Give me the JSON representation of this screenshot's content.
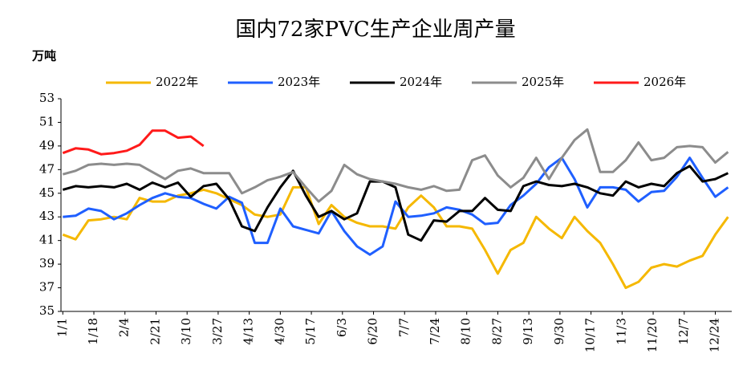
{
  "chart_data": {
    "type": "line",
    "title": "国内72家PVC生产企业周产量",
    "y_label": "万吨",
    "x": [
      0,
      7,
      14,
      21,
      28,
      35,
      42,
      49,
      56,
      63,
      70,
      77,
      84,
      91,
      98,
      105,
      112,
      119,
      126,
      133,
      140,
      147,
      154,
      161,
      168,
      175,
      182,
      189,
      196,
      203,
      210,
      217,
      224,
      231,
      238,
      245,
      252,
      259,
      266,
      273,
      280,
      287,
      294,
      301,
      308,
      315,
      322,
      329,
      336,
      343,
      350,
      357,
      364
    ],
    "xlim": [
      -1,
      366
    ],
    "xticks": [
      {
        "value": 0,
        "label": "1/1"
      },
      {
        "value": 17,
        "label": "1/18"
      },
      {
        "value": 34,
        "label": "2/4"
      },
      {
        "value": 51,
        "label": "2/21"
      },
      {
        "value": 68,
        "label": "3/10"
      },
      {
        "value": 85,
        "label": "3/27"
      },
      {
        "value": 102,
        "label": "4/13"
      },
      {
        "value": 119,
        "label": "4/30"
      },
      {
        "value": 136,
        "label": "5/17"
      },
      {
        "value": 153,
        "label": "6/3"
      },
      {
        "value": 170,
        "label": "6/20"
      },
      {
        "value": 187,
        "label": "7/7"
      },
      {
        "value": 204,
        "label": "7/24"
      },
      {
        "value": 221,
        "label": "8/10"
      },
      {
        "value": 238,
        "label": "8/27"
      },
      {
        "value": 255,
        "label": "9/13"
      },
      {
        "value": 272,
        "label": "9/30"
      },
      {
        "value": 289,
        "label": "10/17"
      },
      {
        "value": 306,
        "label": "11/3"
      },
      {
        "value": 323,
        "label": "11/20"
      },
      {
        "value": 340,
        "label": "12/7"
      },
      {
        "value": 357,
        "label": "12/24"
      }
    ],
    "ylim": [
      35,
      53
    ],
    "yticks": [
      35,
      37,
      39,
      41,
      43,
      45,
      47,
      49,
      51,
      53
    ],
    "grid": false,
    "legend": "top",
    "series": [
      {
        "name": "2022年",
        "color": "#f5b800",
        "values": [
          41.5,
          41.1,
          42.7,
          42.8,
          43.0,
          42.8,
          44.6,
          44.3,
          44.3,
          44.8,
          45.0,
          45.3,
          45.0,
          44.5,
          44.0,
          43.2,
          43.0,
          43.2,
          45.5,
          45.5,
          42.4,
          44.0,
          43.0,
          42.5,
          42.2,
          42.2,
          42.0,
          43.8,
          44.8,
          43.8,
          42.2,
          42.2,
          42.0,
          40.2,
          38.2,
          40.2,
          40.8,
          43.0,
          42.0,
          41.2,
          43.0,
          41.8,
          40.8,
          39.0,
          37.0,
          37.5,
          38.7,
          39.0,
          38.8,
          39.3,
          39.7,
          41.5,
          43.0
        ]
      },
      {
        "name": "2023年",
        "color": "#1f5fff",
        "values": [
          43.0,
          43.1,
          43.7,
          43.5,
          42.8,
          43.3,
          44.0,
          44.6,
          45.0,
          44.7,
          44.6,
          44.1,
          43.7,
          44.7,
          44.2,
          40.8,
          40.8,
          43.7,
          42.2,
          41.9,
          41.6,
          43.5,
          41.8,
          40.5,
          39.8,
          40.5,
          44.3,
          43.0,
          43.1,
          43.3,
          43.8,
          43.6,
          43.2,
          42.4,
          42.5,
          44.0,
          44.8,
          45.8,
          47.2,
          48.0,
          46.2,
          43.8,
          45.5,
          45.5,
          45.3,
          44.3,
          45.1,
          45.2,
          46.4,
          48.0,
          46.3,
          44.7,
          45.5
        ]
      },
      {
        "name": "2024年",
        "color": "#000000",
        "values": [
          45.3,
          45.6,
          45.5,
          45.6,
          45.5,
          45.8,
          45.3,
          45.9,
          45.5,
          45.9,
          44.7,
          45.6,
          45.8,
          44.5,
          42.2,
          41.8,
          43.8,
          45.5,
          46.9,
          44.8,
          43.0,
          43.5,
          42.8,
          43.3,
          46.0,
          46.0,
          45.5,
          41.5,
          41.0,
          42.7,
          42.6,
          43.5,
          43.5,
          44.6,
          43.6,
          43.5,
          45.6,
          46.0,
          45.7,
          45.6,
          45.8,
          45.5,
          45.0,
          44.8,
          46.0,
          45.5,
          45.8,
          45.6,
          46.7,
          47.3,
          46.0,
          46.2,
          46.7
        ]
      },
      {
        "name": "2025年",
        "color": "#8c8c8c",
        "values": [
          46.6,
          46.9,
          47.4,
          47.5,
          47.4,
          47.5,
          47.4,
          46.8,
          46.2,
          46.9,
          47.1,
          46.7,
          46.7,
          46.7,
          45.0,
          45.5,
          46.1,
          46.4,
          46.8,
          45.5,
          44.3,
          45.2,
          47.4,
          46.6,
          46.2,
          46.0,
          45.8,
          45.5,
          45.3,
          45.6,
          45.2,
          45.3,
          47.8,
          48.2,
          46.5,
          45.5,
          46.3,
          48.0,
          46.2,
          48.0,
          49.5,
          50.4,
          46.8,
          46.8,
          47.8,
          49.3,
          47.8,
          48.0,
          48.9,
          49.0,
          48.9,
          47.6,
          48.5
        ]
      },
      {
        "name": "2026年",
        "color": "#ff1a1a",
        "values": [
          48.4,
          48.8,
          48.7,
          48.3,
          48.4,
          48.6,
          49.1,
          50.3,
          50.3,
          49.7,
          49.8,
          49.0,
          null,
          null,
          null,
          null,
          null,
          null,
          null,
          null,
          null,
          null,
          null,
          null,
          null,
          null,
          null,
          null,
          null,
          null,
          null,
          null,
          null,
          null,
          null,
          null,
          null,
          null,
          null,
          null,
          null,
          null,
          null,
          null,
          null,
          null,
          null,
          null,
          null,
          null,
          null,
          null,
          null
        ]
      }
    ]
  }
}
